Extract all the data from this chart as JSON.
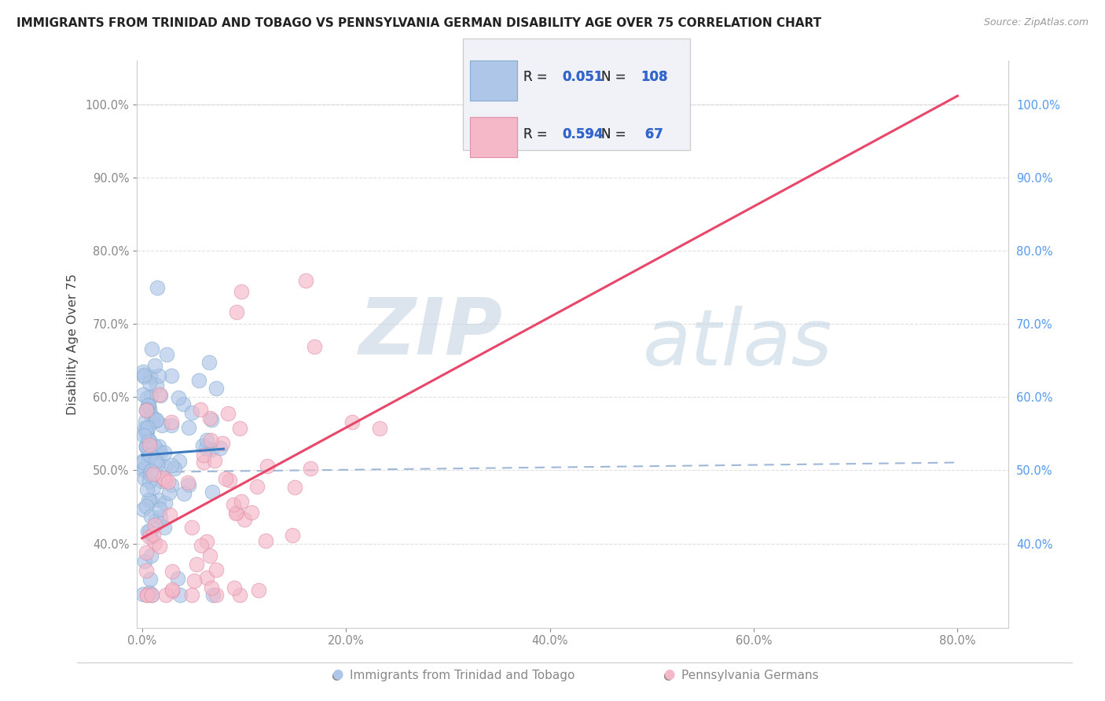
{
  "title": "IMMIGRANTS FROM TRINIDAD AND TOBAGO VS PENNSYLVANIA GERMAN DISABILITY AGE OVER 75 CORRELATION CHART",
  "source": "Source: ZipAtlas.com",
  "ylabel": "Disability Age Over 75",
  "blue_label": "Immigrants from Trinidad and Tobago",
  "pink_label": "Pennsylvania Germans",
  "blue_R": 0.051,
  "blue_N": 108,
  "pink_R": 0.594,
  "pink_N": 67,
  "blue_color": "#aec6e8",
  "pink_color": "#f4b8c8",
  "blue_edge_color": "#85aed0",
  "pink_edge_color": "#e090aa",
  "blue_line_color": "#3a7bbf",
  "pink_line_color": "#e8476a",
  "dash_line_color": "#a0b8d8",
  "watermark_color": "#c8d8eb",
  "legend_face_color": "#f0f2f8",
  "legend_edge_color": "#cccccc",
  "right_tick_color": "#5599ee",
  "left_tick_color": "#888888",
  "bottom_tick_color": "#888888",
  "title_color": "#222222",
  "source_color": "#999999",
  "ylabel_color": "#444444",
  "grid_color": "#e0e0e0",
  "spine_color": "#cccccc",
  "background_color": "#ffffff",
  "xlim": [
    -0.005,
    0.85
  ],
  "ylim": [
    0.285,
    1.06
  ],
  "yticks": [
    0.4,
    0.5,
    0.6,
    0.7,
    0.8,
    0.9,
    1.0
  ],
  "xticks": [
    0.0,
    0.2,
    0.4,
    0.6,
    0.8
  ],
  "scatter_size": 180,
  "scatter_alpha": 0.65
}
